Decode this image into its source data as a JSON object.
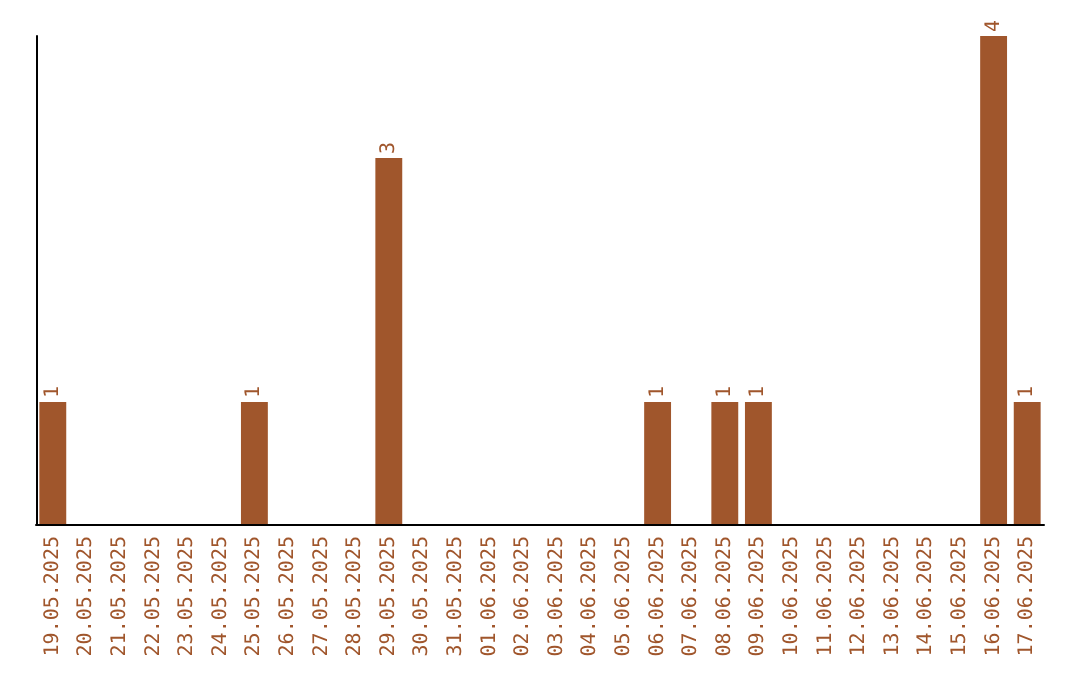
{
  "chart_data": {
    "type": "bar",
    "categories": [
      "19.05.2025",
      "20.05.2025",
      "21.05.2025",
      "22.05.2025",
      "23.05.2025",
      "24.05.2025",
      "25.05.2025",
      "26.05.2025",
      "27.05.2025",
      "28.05.2025",
      "29.05.2025",
      "30.05.2025",
      "31.05.2025",
      "01.06.2025",
      "02.06.2025",
      "03.06.2025",
      "04.06.2025",
      "05.06.2025",
      "06.06.2025",
      "07.06.2025",
      "08.06.2025",
      "09.06.2025",
      "10.06.2025",
      "11.06.2025",
      "12.06.2025",
      "13.06.2025",
      "14.06.2025",
      "15.06.2025",
      "16.06.2025",
      "17.06.2025"
    ],
    "values": [
      1,
      0,
      0,
      0,
      0,
      0,
      1,
      0,
      0,
      0,
      3,
      0,
      0,
      0,
      0,
      0,
      0,
      0,
      1,
      0,
      1,
      1,
      0,
      0,
      0,
      0,
      0,
      0,
      4,
      1
    ],
    "value_labels": [
      "1",
      null,
      null,
      null,
      null,
      null,
      "1",
      null,
      null,
      null,
      "3",
      null,
      null,
      null,
      null,
      null,
      null,
      null,
      "1",
      null,
      "1",
      "1",
      null,
      null,
      null,
      null,
      null,
      null,
      "4",
      "1"
    ],
    "color": "#a0562c"
  }
}
